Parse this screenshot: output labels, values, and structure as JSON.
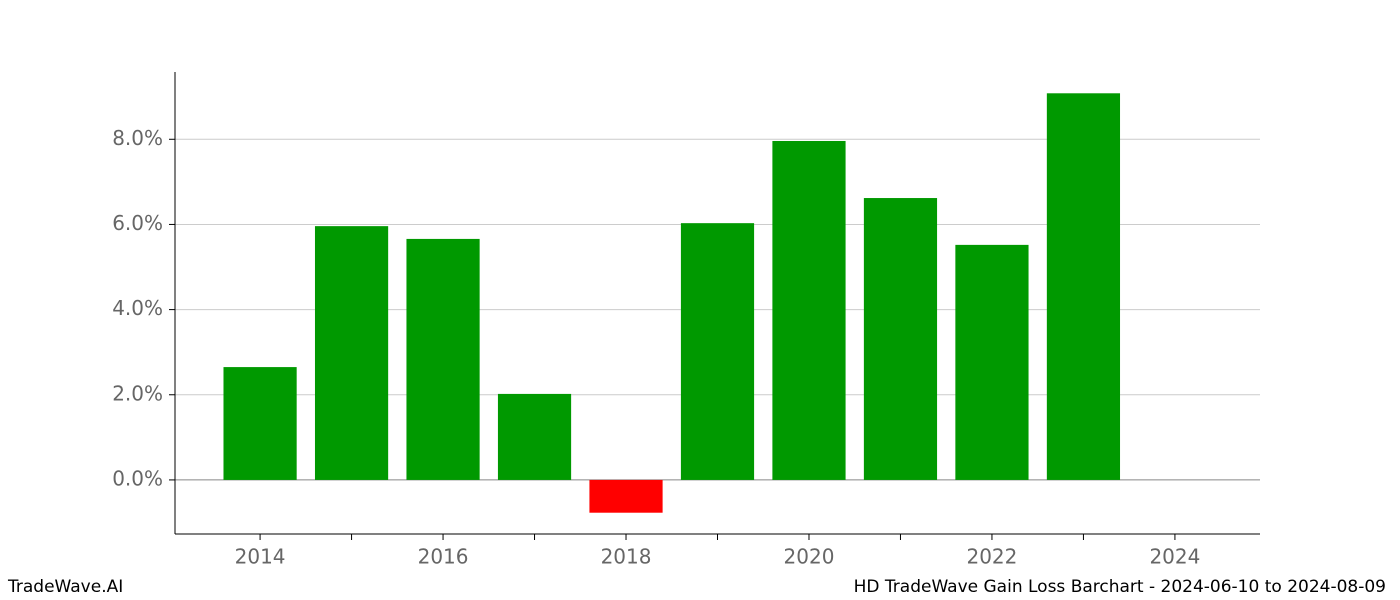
{
  "chart_data": {
    "type": "bar",
    "footer_left": "TradeWave.AI",
    "footer_right": "HD TradeWave Gain Loss Barchart - 2024-06-10 to 2024-08-09",
    "x": [
      2014,
      2015,
      2016,
      2017,
      2018,
      2019,
      2020,
      2021,
      2022,
      2023
    ],
    "values": [
      2.65,
      5.96,
      5.66,
      2.02,
      -0.77,
      6.03,
      7.96,
      6.62,
      5.52,
      9.08
    ],
    "color": "#009900",
    "negative_color": "#ff0000",
    "xlim": [
      2013.07,
      2024.93
    ],
    "xticks": [
      2014,
      2016,
      2018,
      2020,
      2022,
      2024
    ],
    "xminorticks": [
      2015,
      2017,
      2019,
      2021,
      2023
    ],
    "ylim": [
      -1.27,
      9.58
    ],
    "yticks": [
      {
        "value": 0,
        "label": "0.0%"
      },
      {
        "value": 2,
        "label": "2.0%"
      },
      {
        "value": 4,
        "label": "4.0%"
      },
      {
        "value": 6,
        "label": "6.0%"
      },
      {
        "value": 8,
        "label": "8.0%"
      }
    ],
    "grid": true
  }
}
